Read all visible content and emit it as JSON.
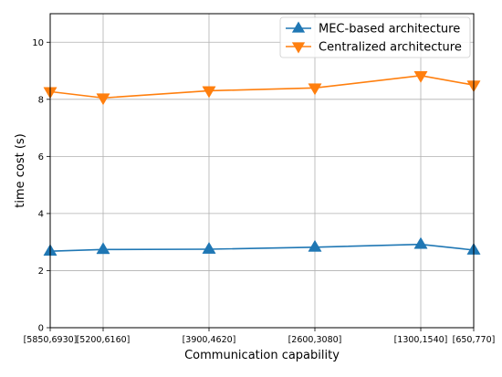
{
  "chart_data": {
    "type": "line",
    "title": "",
    "xlabel": "Communication capability",
    "ylabel": "time cost (s)",
    "x_positions": [
      0,
      0.5,
      1.5,
      2.5,
      3.5,
      4.0
    ],
    "categories": [
      "[5850,6930]",
      "[5200,6160]",
      "[3900,4620]",
      "[2600,3080]",
      "[1300,1540]",
      "[650,770]"
    ],
    "xlim": [
      0,
      4.0
    ],
    "ylim": [
      0,
      11
    ],
    "yticks": [
      0,
      2,
      4,
      6,
      8,
      10
    ],
    "grid": true,
    "legend_position": "top-right",
    "series": [
      {
        "name": "MEC-based architecture",
        "marker": "triangle-up",
        "color": "#1f77b4",
        "values": [
          2.68,
          2.74,
          2.75,
          2.82,
          2.92,
          2.72
        ]
      },
      {
        "name": "Centralized architecture",
        "marker": "triangle-down",
        "color": "#ff7f0e",
        "values": [
          8.27,
          8.05,
          8.3,
          8.4,
          8.83,
          8.5
        ]
      }
    ]
  }
}
